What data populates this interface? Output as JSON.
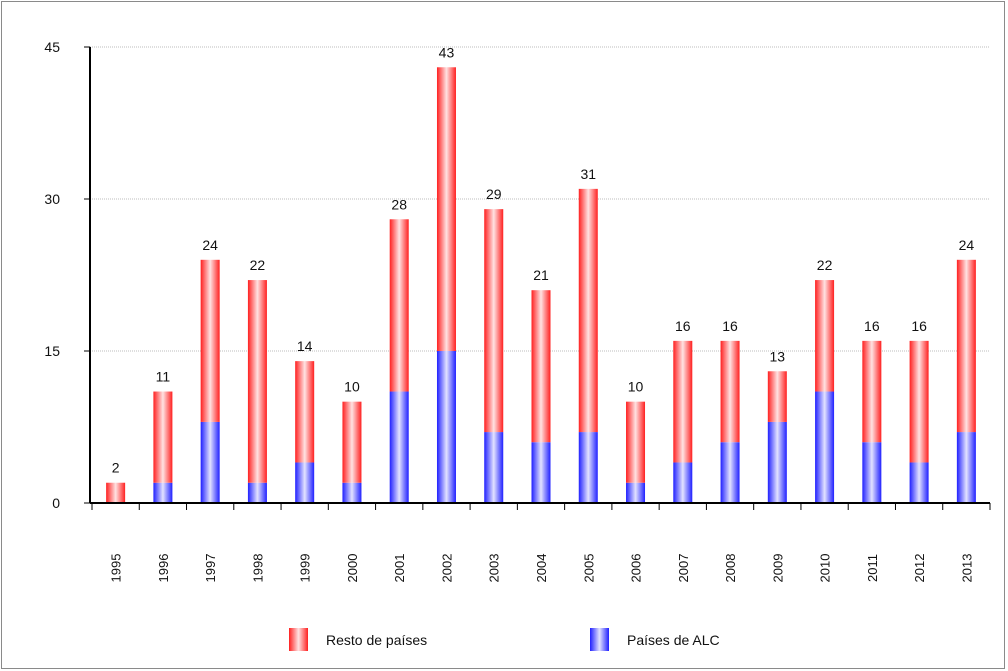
{
  "chart_data": {
    "type": "bar",
    "stacked": true,
    "title": "",
    "xlabel": "",
    "ylabel": "",
    "ylim": [
      0,
      45
    ],
    "yticks": [
      0,
      15,
      30,
      45
    ],
    "grid": true,
    "legend_position": "bottom",
    "categories": [
      "1995",
      "1996",
      "1997",
      "1998",
      "1999",
      "2000",
      "2001",
      "2002",
      "2003",
      "2004",
      "2005",
      "2006",
      "2007",
      "2008",
      "2009",
      "2010",
      "2011",
      "2012",
      "2013"
    ],
    "series": [
      {
        "name": "Países de ALC",
        "color": "#3b3bff",
        "values": [
          0,
          2,
          8,
          2,
          4,
          2,
          11,
          15,
          7,
          6,
          7,
          2,
          4,
          6,
          8,
          11,
          6,
          4,
          7
        ]
      },
      {
        "name": "Resto de países",
        "color": "#ff3b3b",
        "values": [
          2,
          9,
          16,
          20,
          10,
          8,
          17,
          28,
          22,
          15,
          24,
          8,
          12,
          10,
          5,
          11,
          10,
          12,
          17
        ]
      }
    ],
    "totals": [
      2,
      11,
      24,
      22,
      14,
      10,
      28,
      43,
      29,
      21,
      31,
      10,
      16,
      16,
      13,
      22,
      16,
      16,
      24
    ],
    "legend": [
      {
        "label": "Resto de países",
        "color": "#ff3b3b"
      },
      {
        "label": "Países de ALC",
        "color": "#3b3bff"
      }
    ]
  }
}
